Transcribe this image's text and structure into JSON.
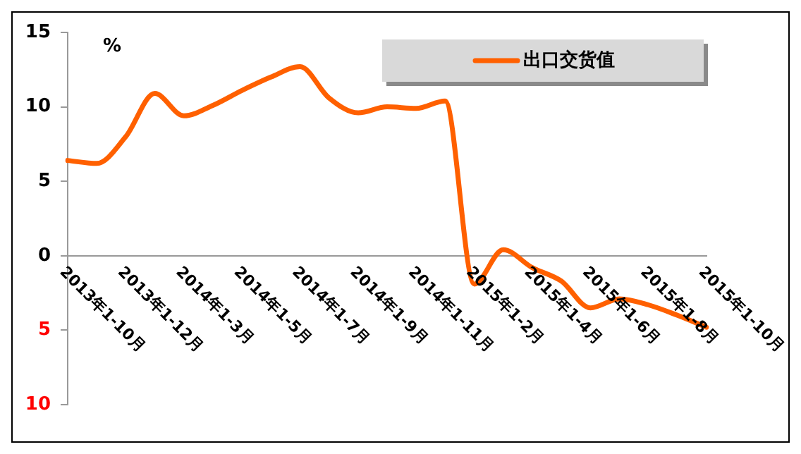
{
  "chart_data": {
    "type": "line",
    "ylabel": "%",
    "categories": [
      "2013年1-10月",
      null,
      "2013年1-12月",
      null,
      "2014年1-3月",
      null,
      "2014年1-5月",
      null,
      "2014年1-7月",
      null,
      "2014年1-9月",
      null,
      "2014年1-11月",
      null,
      "2015年1-2月",
      null,
      "2015年1-4月",
      null,
      "2015年1-6月",
      null,
      "2015年1-8月",
      null,
      "2015年1-10月"
    ],
    "series": [
      {
        "name": "出口交货值",
        "color": "#ff6000",
        "values": [
          6.4,
          6.2,
          8.0,
          10.9,
          9.4,
          10.1,
          11.1,
          12.0,
          12.7,
          10.6,
          9.6,
          10.0,
          9.9,
          10.4,
          -1.9,
          0.4,
          -0.8,
          -1.7,
          -3.5,
          -2.9,
          -3.3,
          -4.0,
          -4.8
        ]
      }
    ],
    "ylim": [
      -10,
      15
    ],
    "yticks": [
      {
        "value": -10,
        "label": "10"
      },
      {
        "value": -5,
        "label": "5"
      },
      0,
      5,
      10,
      15
    ],
    "grid": false,
    "legend": "top right",
    "marker": "none",
    "line_style": "solid"
  }
}
